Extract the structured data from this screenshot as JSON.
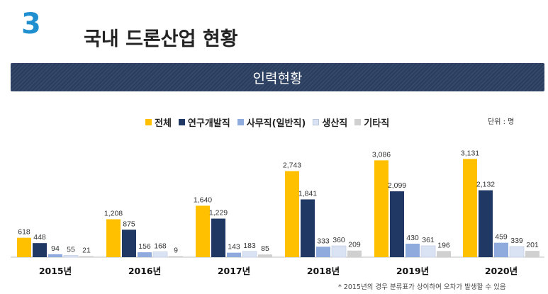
{
  "header": {
    "section_number": "3",
    "title": "국내 드론산업 현황"
  },
  "banner": {
    "title": "인력현황"
  },
  "unit_label": "단위 : 명",
  "footnote": "* 2015년의 경우 분류표가 상이하여 오차가 발생할 수 있음",
  "chart_data": {
    "type": "bar",
    "categories": [
      "2015년",
      "2016년",
      "2017년",
      "2018년",
      "2019년",
      "2020년"
    ],
    "series": [
      {
        "name": "전체",
        "color": "#ffc000",
        "values": [
          618,
          1208,
          1640,
          2743,
          3086,
          3131
        ],
        "labels": [
          "618",
          "1,208",
          "1,640",
          "2,743",
          "3,086",
          "3,131"
        ]
      },
      {
        "name": "연구개발직",
        "color": "#1f3864",
        "values": [
          448,
          875,
          1229,
          1841,
          2099,
          2132
        ],
        "labels": [
          "448",
          "875",
          "1,229",
          "1,841",
          "2,099",
          "2,132"
        ]
      },
      {
        "name": "사무직(일반직)",
        "color": "#8faadc",
        "values": [
          94,
          156,
          143,
          333,
          430,
          459
        ],
        "labels": [
          "94",
          "156",
          "143",
          "333",
          "430",
          "459"
        ]
      },
      {
        "name": "생산직",
        "color": "#dae3f3",
        "values": [
          55,
          168,
          183,
          360,
          361,
          339
        ],
        "labels": [
          "55",
          "168",
          "183",
          "360",
          "361",
          "339"
        ]
      },
      {
        "name": "기타직",
        "color": "#d0d0d0",
        "values": [
          21,
          9,
          85,
          209,
          196,
          201
        ],
        "labels": [
          "21",
          "9",
          "85",
          "209",
          "196",
          "201"
        ]
      }
    ],
    "ylim": [
      0,
      3500
    ],
    "legend_position": "top"
  }
}
